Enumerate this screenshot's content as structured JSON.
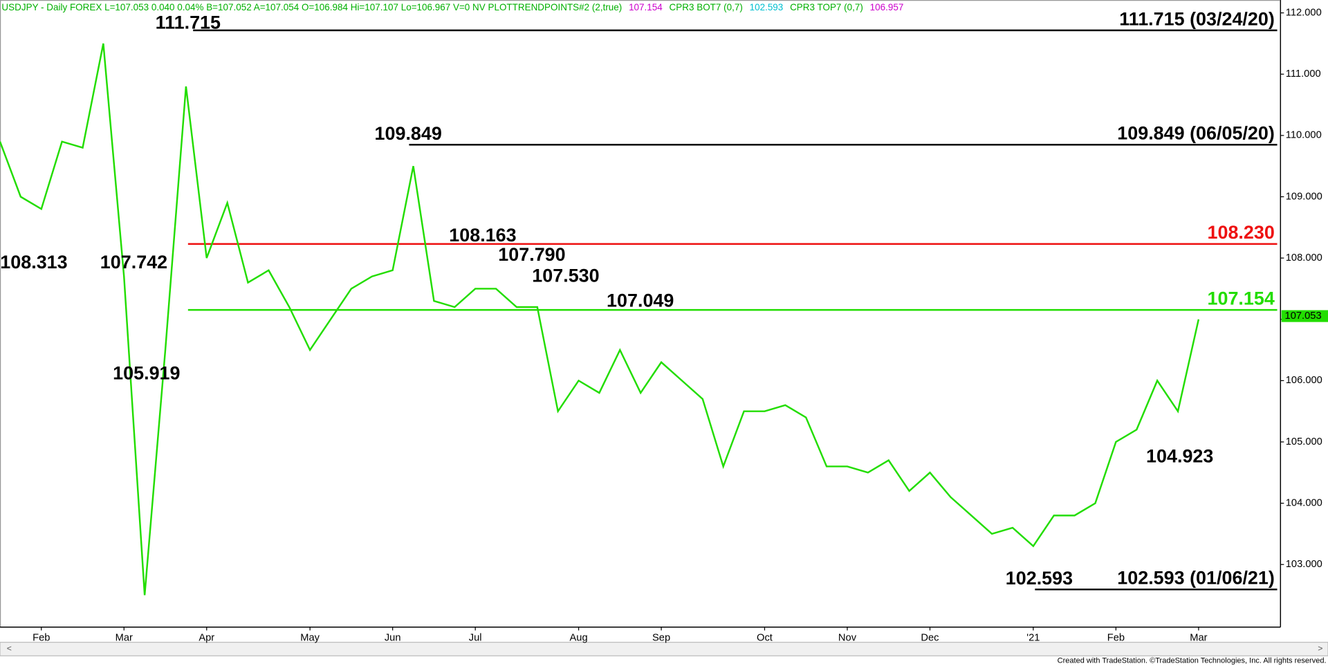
{
  "chart_data": {
    "type": "line",
    "header": [
      {
        "text": "USDJPY - Daily  FOREX  L=107.053  0.040  0.04%  B=107.052  A=107.054  O=106.984  Hi=107.107  Lo=106.967  V=0  NV  PLOTTRENDPOINTS#2 (2,true)",
        "color": "#00b000"
      },
      {
        "text": "107.154",
        "color": "#cc00cc"
      },
      {
        "text": "CPR3 BOT7 (0,7)",
        "color": "#00b000"
      },
      {
        "text": "102.593",
        "color": "#00c0d0"
      },
      {
        "text": "CPR3 TOP7 (0,7)",
        "color": "#00b000"
      },
      {
        "text": "106.957",
        "color": "#cc00cc"
      }
    ],
    "categories": [
      null,
      null,
      "Feb",
      null,
      null,
      null,
      "Mar",
      null,
      null,
      null,
      "Apr",
      null,
      null,
      null,
      null,
      "May",
      null,
      null,
      null,
      "Jun",
      null,
      null,
      null,
      "Jul",
      null,
      null,
      null,
      null,
      "Aug",
      null,
      null,
      null,
      "Sep",
      null,
      null,
      null,
      null,
      "Oct",
      null,
      null,
      null,
      "Nov",
      null,
      null,
      null,
      "Dec",
      null,
      null,
      null,
      null,
      "'21",
      null,
      null,
      null,
      "Feb",
      null,
      null,
      null,
      "Mar"
    ],
    "series": [
      {
        "name": "USDJPY",
        "color": "#22dd00",
        "values": [
          109.9,
          109.0,
          108.8,
          109.9,
          109.8,
          111.5,
          107.7,
          102.5,
          106.5,
          110.8,
          108.0,
          108.9,
          107.6,
          107.8,
          107.2,
          106.5,
          107.0,
          107.5,
          107.7,
          107.8,
          109.5,
          107.3,
          107.2,
          107.5,
          107.5,
          107.2,
          107.2,
          105.5,
          106.0,
          105.8,
          106.5,
          105.8,
          106.3,
          106.0,
          105.7,
          104.6,
          105.5,
          105.5,
          105.6,
          105.4,
          104.6,
          104.6,
          104.5,
          104.7,
          104.2,
          104.5,
          104.1,
          103.8,
          103.5,
          103.6,
          103.3,
          103.8,
          103.8,
          104.0,
          105.0,
          105.2,
          106.0,
          105.5,
          107.0
        ]
      }
    ],
    "ylim": [
      101.98,
      112.21
    ],
    "yticks": [
      {
        "value": 103,
        "label": "103.000"
      },
      {
        "value": 104,
        "label": "104.000"
      },
      {
        "value": 105,
        "label": "105.000"
      },
      {
        "value": 106,
        "label": "106.000"
      },
      {
        "value": 107,
        "label": "107.000"
      },
      {
        "value": 108,
        "label": "108.000"
      },
      {
        "value": 109,
        "label": "109.000"
      },
      {
        "value": 110,
        "label": "110.000"
      },
      {
        "value": 111,
        "label": "111.000"
      },
      {
        "value": 112,
        "label": "112.000"
      }
    ],
    "levels": [
      {
        "value": 111.715,
        "label": "111.715 (03/24/20)",
        "color": "#000000"
      },
      {
        "value": 109.849,
        "label": "109.849 (06/05/20)",
        "color": "#000000"
      },
      {
        "value": 108.23,
        "label": "108.230",
        "color": "#ee1111"
      },
      {
        "value": 107.154,
        "label": "107.154",
        "color": "#22dd00"
      },
      {
        "value": 102.593,
        "label": "102.593 (01/06/21)",
        "color": "#000000"
      }
    ],
    "annotations": [
      "111.715",
      "108.313",
      "107.742",
      "105.919",
      "109.849",
      "108.163",
      "107.790",
      "107.530",
      "107.049",
      "104.923",
      "102.593"
    ],
    "last_price": {
      "value": 107.053,
      "label": "107.053",
      "color": "#22dd00"
    },
    "footer": "Created with TradeStation. ©TradeStation Technologies, Inc. All rights reserved."
  }
}
